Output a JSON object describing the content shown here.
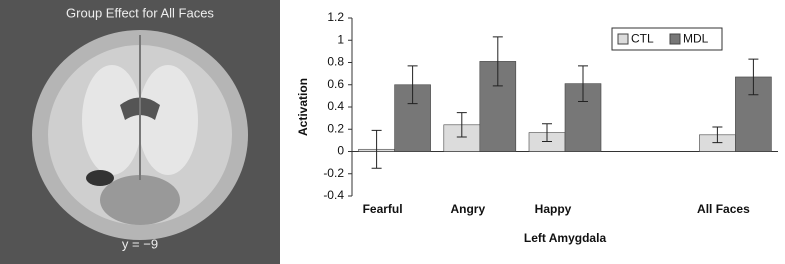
{
  "image": {
    "title": "Group Effect for All Faces",
    "label": "y = −9"
  },
  "chart_data": {
    "type": "bar",
    "categories": [
      "Fearful",
      "Angry",
      "Happy",
      null,
      "All Faces"
    ],
    "series": [
      {
        "name": "CTL",
        "color": "#dcdcdc",
        "values": [
          0.02,
          0.24,
          0.17,
          null,
          0.15
        ],
        "errors": [
          0.17,
          0.11,
          0.08,
          null,
          0.07
        ]
      },
      {
        "name": "MDL",
        "color": "#777777",
        "values": [
          0.6,
          0.81,
          0.61,
          null,
          0.67
        ],
        "errors": [
          0.17,
          0.22,
          0.16,
          null,
          0.16
        ]
      }
    ],
    "xlabel": "Left Amygdala",
    "ylabel": "Activation",
    "ylim": [
      -0.4,
      1.2
    ],
    "yticks": [
      -0.4,
      -0.2,
      0,
      0.2,
      0.4,
      0.6,
      0.8,
      1,
      1.2
    ],
    "legend": "upper right"
  }
}
